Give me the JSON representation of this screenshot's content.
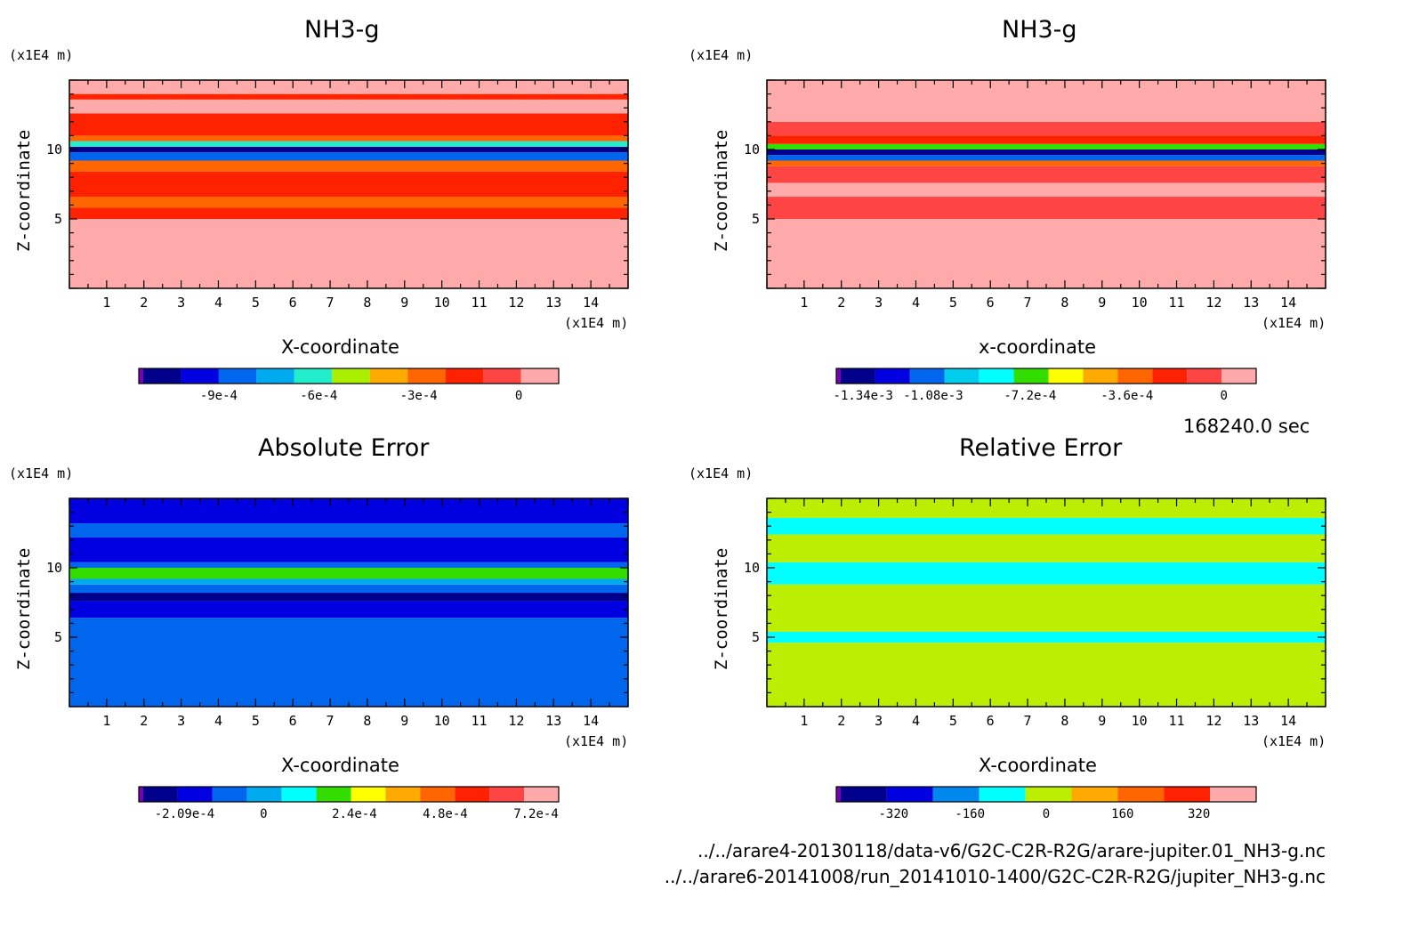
{
  "chart_data": [
    {
      "type": "heatmap",
      "title": "NH3-g",
      "xlabel": "X-coordinate",
      "ylabel": "Z-coordinate",
      "x_unit": "(x1E4 m)",
      "y_unit": "(x1E4 m)",
      "xticks": [
        1,
        2,
        3,
        4,
        5,
        6,
        7,
        8,
        9,
        10,
        11,
        12,
        13,
        14
      ],
      "yticks": [
        5,
        10
      ],
      "xlim": [
        0,
        15
      ],
      "ylim": [
        0,
        15
      ],
      "colorbar": {
        "colors": [
          "#7a00b0",
          "#00008c",
          "#0000e0",
          "#0066ee",
          "#00aaee",
          "#22eecc",
          "#aaee00",
          "#ffaa00",
          "#ff6600",
          "#ff2200",
          "#ff4444",
          "#ffaaaa"
        ],
        "tick_labels": [
          "-9e-4",
          "-6e-4",
          "-3e-4",
          "0"
        ],
        "tick_values": [
          -0.0009,
          -0.0006,
          -0.0003,
          0
        ],
        "range": [
          -0.00114,
          0.00012
        ]
      },
      "bands": [
        {
          "z": [
            0,
            5
          ],
          "level": 11
        },
        {
          "z": [
            5,
            5.8
          ],
          "level": 9
        },
        {
          "z": [
            5.8,
            6.6
          ],
          "level": 8
        },
        {
          "z": [
            6.6,
            8.4
          ],
          "level": 9
        },
        {
          "z": [
            8.4,
            9.2
          ],
          "level": 8
        },
        {
          "z": [
            9.2,
            9.8
          ],
          "level": 3
        },
        {
          "z": [
            9.8,
            10.2
          ],
          "level": 1
        },
        {
          "z": [
            10.2,
            10.6
          ],
          "level": 5
        },
        {
          "z": [
            10.6,
            11
          ],
          "level": 8
        },
        {
          "z": [
            11,
            12.6
          ],
          "level": 9
        },
        {
          "z": [
            12.6,
            13.6
          ],
          "level": 11
        },
        {
          "z": [
            13.6,
            14
          ],
          "level": 9
        },
        {
          "z": [
            14,
            15
          ],
          "level": 11
        }
      ]
    },
    {
      "type": "heatmap",
      "title": "NH3-g",
      "xlabel": "x-coordinate",
      "ylabel": "Z-coordinate",
      "x_unit": "(x1E4 m)",
      "y_unit": "(x1E4 m)",
      "xticks": [
        1,
        2,
        3,
        4,
        5,
        6,
        7,
        8,
        9,
        10,
        11,
        12,
        13,
        14
      ],
      "yticks": [
        5,
        10
      ],
      "xlim": [
        0,
        15
      ],
      "ylim": [
        0,
        15
      ],
      "colorbar": {
        "colors": [
          "#7a00b0",
          "#00008c",
          "#0000e0",
          "#0066ee",
          "#00ccee",
          "#00ffff",
          "#33dd00",
          "#ffff00",
          "#ffaa00",
          "#ff6600",
          "#ff2200",
          "#ff4444",
          "#ffaaaa"
        ],
        "tick_labels": [
          "-1.34e-3",
          "-1.08e-3",
          "-7.2e-4",
          "-3.6e-4",
          "0"
        ],
        "tick_values": [
          -0.00134,
          -0.00108,
          -0.00072,
          -0.00036,
          0
        ],
        "range": [
          -0.00144,
          0.00012
        ]
      },
      "bands": [
        {
          "z": [
            0,
            5
          ],
          "level": 12
        },
        {
          "z": [
            5,
            6.6
          ],
          "level": 11
        },
        {
          "z": [
            6.6,
            7.6
          ],
          "level": 12
        },
        {
          "z": [
            7.6,
            8.8
          ],
          "level": 11
        },
        {
          "z": [
            8.8,
            9.2
          ],
          "level": 9
        },
        {
          "z": [
            9.2,
            9.6
          ],
          "level": 3
        },
        {
          "z": [
            9.6,
            10
          ],
          "level": 1
        },
        {
          "z": [
            10,
            10.4
          ],
          "level": 6
        },
        {
          "z": [
            10.4,
            11
          ],
          "level": 10
        },
        {
          "z": [
            11,
            12
          ],
          "level": 11
        },
        {
          "z": [
            12,
            13.4
          ],
          "level": 12
        },
        {
          "z": [
            13.4,
            15
          ],
          "level": 12
        }
      ]
    },
    {
      "type": "heatmap",
      "title": "Absolute Error",
      "xlabel": "X-coordinate",
      "ylabel": "Z-coordinate",
      "x_unit": "(x1E4 m)",
      "y_unit": "(x1E4 m)",
      "xticks": [
        1,
        2,
        3,
        4,
        5,
        6,
        7,
        8,
        9,
        10,
        11,
        12,
        13,
        14
      ],
      "yticks": [
        5,
        10
      ],
      "xlim": [
        0,
        15
      ],
      "ylim": [
        0,
        15
      ],
      "colorbar": {
        "colors": [
          "#7a00b0",
          "#00008c",
          "#0000e0",
          "#0066ee",
          "#00aaee",
          "#00ffff",
          "#33dd00",
          "#ffff00",
          "#ffaa00",
          "#ff6600",
          "#ff2200",
          "#ff4444",
          "#ffaaaa"
        ],
        "tick_labels": [
          "-2.09e-4",
          "0",
          "2.4e-4",
          "4.8e-4",
          "7.2e-4"
        ],
        "tick_values": [
          -0.000209,
          0,
          0.00024,
          0.00048,
          0.00072
        ],
        "range": [
          -0.00033,
          0.00078
        ]
      },
      "bands": [
        {
          "z": [
            0,
            6.4
          ],
          "level": 3
        },
        {
          "z": [
            6.4,
            7.6
          ],
          "level": 2
        },
        {
          "z": [
            7.6,
            8.2
          ],
          "level": 1
        },
        {
          "z": [
            8.2,
            8.8
          ],
          "level": 3
        },
        {
          "z": [
            8.8,
            9.2
          ],
          "level": 4
        },
        {
          "z": [
            9.2,
            10
          ],
          "level": 6
        },
        {
          "z": [
            10,
            10.4
          ],
          "level": 3
        },
        {
          "z": [
            10.4,
            12.2
          ],
          "level": 2
        },
        {
          "z": [
            12.2,
            13.2
          ],
          "level": 3
        },
        {
          "z": [
            13.2,
            15
          ],
          "level": 2
        }
      ]
    },
    {
      "type": "heatmap",
      "title": "Relative Error",
      "xlabel": "X-coordinate",
      "ylabel": "Z-coordinate",
      "x_unit": "(x1E4 m)",
      "y_unit": "(x1E4 m)",
      "xticks": [
        1,
        2,
        3,
        4,
        5,
        6,
        7,
        8,
        9,
        10,
        11,
        12,
        13,
        14
      ],
      "yticks": [
        5,
        10
      ],
      "xlim": [
        0,
        15
      ],
      "ylim": [
        0,
        15
      ],
      "colorbar": {
        "colors": [
          "#7a00b0",
          "#00008c",
          "#0000e0",
          "#0088ee",
          "#00ffff",
          "#bbee00",
          "#ffaa00",
          "#ff6600",
          "#ff2200",
          "#ffaaaa"
        ],
        "tick_labels": [
          "-320",
          "-160",
          "0",
          "160",
          "320"
        ],
        "tick_values": [
          -320,
          -160,
          0,
          160,
          320
        ],
        "range": [
          -440,
          440
        ]
      },
      "bands": [
        {
          "z": [
            0,
            4.6
          ],
          "level": 5
        },
        {
          "z": [
            4.6,
            5.4
          ],
          "level": 4
        },
        {
          "z": [
            5.4,
            8.8
          ],
          "level": 5
        },
        {
          "z": [
            8.8,
            10.4
          ],
          "level": 4
        },
        {
          "z": [
            10.4,
            12.4
          ],
          "level": 5
        },
        {
          "z": [
            12.4,
            13.6
          ],
          "level": 4
        },
        {
          "z": [
            13.6,
            15
          ],
          "level": 5
        }
      ]
    }
  ],
  "time_label": "168240.0 sec",
  "file_paths": [
    "../../arare4-20130118/data-v6/G2C-C2R-R2G/arare-jupiter.01_NH3-g.nc",
    "../../arare6-20141008/run_20141010-1400/G2C-C2R-R2G/jupiter_NH3-g.nc"
  ]
}
